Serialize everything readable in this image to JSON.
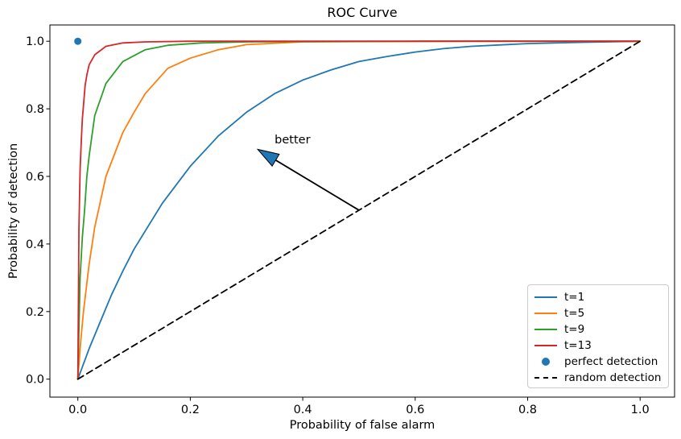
{
  "chart_data": {
    "type": "line",
    "title": "ROC Curve",
    "xlabel": "Probability of false alarm",
    "ylabel": "Probability of detection",
    "xlim": [
      -0.05,
      1.05
    ],
    "ylim": [
      -0.05,
      1.05
    ],
    "grid": false,
    "legend_position": "lower right",
    "xticks": [
      0.0,
      0.2,
      0.4,
      0.6,
      0.8,
      1.0
    ],
    "xticklabels": [
      "0.0",
      "0.2",
      "0.4",
      "0.6",
      "0.8",
      "1.0"
    ],
    "yticks": [
      0.0,
      0.2,
      0.4,
      0.6,
      0.8,
      1.0
    ],
    "yticklabels": [
      "0.0",
      "0.2",
      "0.4",
      "0.6",
      "0.8",
      "1.0"
    ],
    "series": [
      {
        "name": "t=1",
        "color": "#1f77b4",
        "style": "solid",
        "points": [
          [
            0,
            0
          ],
          [
            0.01,
            0.045
          ],
          [
            0.02,
            0.09
          ],
          [
            0.04,
            0.17
          ],
          [
            0.06,
            0.25
          ],
          [
            0.08,
            0.32
          ],
          [
            0.1,
            0.385
          ],
          [
            0.15,
            0.52
          ],
          [
            0.2,
            0.63
          ],
          [
            0.25,
            0.72
          ],
          [
            0.3,
            0.79
          ],
          [
            0.35,
            0.845
          ],
          [
            0.4,
            0.885
          ],
          [
            0.45,
            0.915
          ],
          [
            0.5,
            0.94
          ],
          [
            0.55,
            0.955
          ],
          [
            0.6,
            0.968
          ],
          [
            0.65,
            0.978
          ],
          [
            0.7,
            0.985
          ],
          [
            0.8,
            0.993
          ],
          [
            0.9,
            0.997
          ],
          [
            1.0,
            1.0
          ]
        ]
      },
      {
        "name": "t=5",
        "color": "#ff7f0e",
        "style": "solid",
        "points": [
          [
            0,
            0
          ],
          [
            0.005,
            0.11
          ],
          [
            0.01,
            0.2
          ],
          [
            0.02,
            0.34
          ],
          [
            0.03,
            0.45
          ],
          [
            0.05,
            0.6
          ],
          [
            0.08,
            0.73
          ],
          [
            0.1,
            0.79
          ],
          [
            0.12,
            0.845
          ],
          [
            0.16,
            0.92
          ],
          [
            0.2,
            0.95
          ],
          [
            0.25,
            0.975
          ],
          [
            0.3,
            0.99
          ],
          [
            0.4,
            0.998
          ],
          [
            0.5,
            0.999
          ],
          [
            0.7,
            1.0
          ],
          [
            1.0,
            1.0
          ]
        ]
      },
      {
        "name": "t=9",
        "color": "#2ca02c",
        "style": "solid",
        "points": [
          [
            0,
            0
          ],
          [
            0.004,
            0.3
          ],
          [
            0.008,
            0.42
          ],
          [
            0.012,
            0.5
          ],
          [
            0.016,
            0.6
          ],
          [
            0.02,
            0.66
          ],
          [
            0.03,
            0.78
          ],
          [
            0.05,
            0.875
          ],
          [
            0.08,
            0.94
          ],
          [
            0.12,
            0.975
          ],
          [
            0.16,
            0.988
          ],
          [
            0.22,
            0.995
          ],
          [
            0.3,
            0.998
          ],
          [
            0.4,
            0.999
          ],
          [
            0.6,
            1.0
          ],
          [
            1.0,
            1.0
          ]
        ]
      },
      {
        "name": "t=13",
        "color": "#d62728",
        "style": "solid",
        "points": [
          [
            0,
            0
          ],
          [
            0.002,
            0.45
          ],
          [
            0.004,
            0.62
          ],
          [
            0.006,
            0.7
          ],
          [
            0.008,
            0.77
          ],
          [
            0.01,
            0.81
          ],
          [
            0.013,
            0.87
          ],
          [
            0.016,
            0.9
          ],
          [
            0.02,
            0.93
          ],
          [
            0.03,
            0.96
          ],
          [
            0.05,
            0.985
          ],
          [
            0.08,
            0.995
          ],
          [
            0.12,
            0.998
          ],
          [
            0.2,
            1.0
          ],
          [
            1.0,
            1.0
          ]
        ]
      },
      {
        "name": "perfect detection",
        "color": "#1f77b4",
        "type": "scatter",
        "points": [
          [
            0,
            1
          ]
        ]
      },
      {
        "name": "random detection",
        "color": "#000000",
        "style": "dashed",
        "points": [
          [
            0,
            0
          ],
          [
            1,
            1
          ]
        ]
      }
    ],
    "annotation": {
      "text": "better",
      "arrow_tail_xy": [
        0.5,
        0.5
      ],
      "arrow_tip_xy": [
        0.32,
        0.68
      ],
      "text_xy": [
        0.35,
        0.698
      ],
      "arrow_color": "#1f77b4"
    }
  },
  "legend": {
    "items": [
      {
        "label": "t=1",
        "swatch": "line",
        "color": "#1f77b4"
      },
      {
        "label": "t=5",
        "swatch": "line",
        "color": "#ff7f0e"
      },
      {
        "label": "t=9",
        "swatch": "line",
        "color": "#2ca02c"
      },
      {
        "label": "t=13",
        "swatch": "line",
        "color": "#d62728"
      },
      {
        "label": "perfect detection",
        "swatch": "dot",
        "color": "#1f77b4"
      },
      {
        "label": "random detection",
        "swatch": "dashed",
        "color": "#000000"
      }
    ]
  }
}
